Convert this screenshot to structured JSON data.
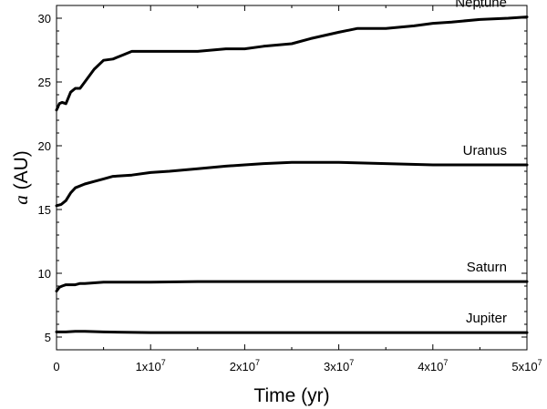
{
  "chart_data": {
    "type": "line",
    "title": "",
    "xlabel": "Time (yr)",
    "ylabel_italic": "a",
    "ylabel_unit": " (AU)",
    "xlim": [
      0,
      50000000
    ],
    "ylim": [
      4,
      31
    ],
    "grid": false,
    "legend": "none",
    "line_color": "#000000",
    "x_ticks": [
      {
        "value": 0,
        "base": "0",
        "exp": ""
      },
      {
        "value": 10000000,
        "base": "1x10",
        "exp": "7"
      },
      {
        "value": 20000000,
        "base": "2x10",
        "exp": "7"
      },
      {
        "value": 30000000,
        "base": "3x10",
        "exp": "7"
      },
      {
        "value": 40000000,
        "base": "4x10",
        "exp": "7"
      },
      {
        "value": 50000000,
        "base": "5x10",
        "exp": "7"
      }
    ],
    "y_ticks": [
      {
        "value": 5,
        "label": "5"
      },
      {
        "value": 10,
        "label": "10"
      },
      {
        "value": 15,
        "label": "15"
      },
      {
        "value": 20,
        "label": "20"
      },
      {
        "value": 25,
        "label": "25"
      },
      {
        "value": 30,
        "label": "30"
      }
    ],
    "series": [
      {
        "name": "Neptune",
        "x": [
          0,
          300000,
          600000,
          1000000,
          1500000,
          2000000,
          2500000,
          3000000,
          4000000,
          5000000,
          6000000,
          7000000,
          8000000,
          10000000,
          12000000,
          15000000,
          18000000,
          20000000,
          22000000,
          25000000,
          27000000,
          30000000,
          32000000,
          35000000,
          38000000,
          40000000,
          42000000,
          45000000,
          48000000,
          50000000
        ],
        "y": [
          22.8,
          23.3,
          23.4,
          23.3,
          24.2,
          24.5,
          24.5,
          25.0,
          26.0,
          26.7,
          26.8,
          27.1,
          27.4,
          27.4,
          27.4,
          27.4,
          27.6,
          27.6,
          27.8,
          28.0,
          28.4,
          28.9,
          29.2,
          29.2,
          29.4,
          29.6,
          29.7,
          29.9,
          30.0,
          30.1
        ]
      },
      {
        "name": "Uranus",
        "x": [
          0,
          500000,
          1000000,
          1500000,
          2000000,
          3000000,
          4000000,
          5000000,
          6000000,
          8000000,
          10000000,
          12000000,
          15000000,
          18000000,
          20000000,
          22000000,
          25000000,
          28000000,
          30000000,
          35000000,
          40000000,
          45000000,
          50000000
        ],
        "y": [
          15.3,
          15.4,
          15.7,
          16.3,
          16.7,
          17.0,
          17.2,
          17.4,
          17.6,
          17.7,
          17.9,
          18.0,
          18.2,
          18.4,
          18.5,
          18.6,
          18.7,
          18.7,
          18.7,
          18.6,
          18.5,
          18.5,
          18.5
        ]
      },
      {
        "name": "Saturn",
        "x": [
          0,
          300000,
          600000,
          1000000,
          2000000,
          2500000,
          3000000,
          5000000,
          8000000,
          10000000,
          15000000,
          20000000,
          30000000,
          40000000,
          50000000
        ],
        "y": [
          8.6,
          8.9,
          9.0,
          9.1,
          9.1,
          9.2,
          9.2,
          9.3,
          9.3,
          9.3,
          9.35,
          9.35,
          9.35,
          9.35,
          9.35
        ]
      },
      {
        "name": "Jupiter",
        "x": [
          0,
          1000000,
          2000000,
          3000000,
          5000000,
          10000000,
          20000000,
          30000000,
          40000000,
          50000000
        ],
        "y": [
          5.4,
          5.4,
          5.45,
          5.45,
          5.4,
          5.35,
          5.35,
          5.35,
          5.35,
          5.35
        ]
      }
    ]
  }
}
